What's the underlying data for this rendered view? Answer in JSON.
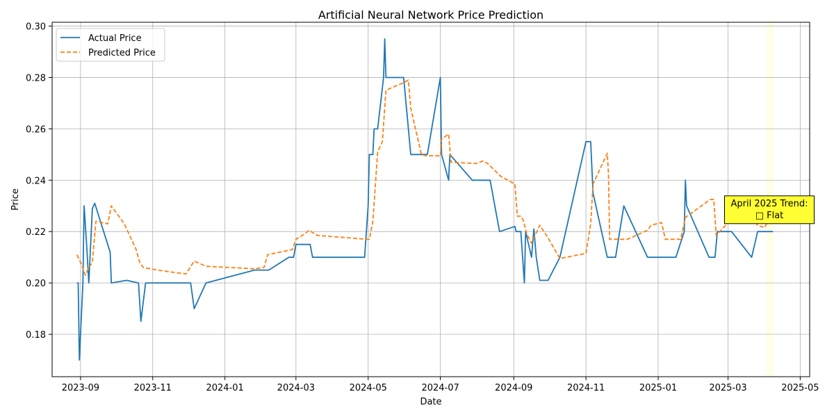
{
  "chart_data": {
    "type": "line",
    "title": "Artificial Neural Network Price Prediction",
    "xlabel": "Date",
    "ylabel": "Price",
    "xlim": [
      "2023-08-08",
      "2025-05-09"
    ],
    "ylim": [
      0.1635,
      0.3015
    ],
    "grid": true,
    "legend_position": "top-left",
    "x_ticks": [
      "2023-09-01",
      "2023-11-01",
      "2024-01-01",
      "2024-03-01",
      "2024-05-01",
      "2024-07-01",
      "2024-09-01",
      "2024-11-01",
      "2025-01-01",
      "2025-03-01",
      "2025-05-01"
    ],
    "x_tick_labels": [
      "2023-09",
      "2023-11",
      "2024-01",
      "2024-03",
      "2024-05",
      "2024-07",
      "2024-09",
      "2024-11",
      "2025-01",
      "2025-03",
      "2025-05"
    ],
    "y_ticks": [
      0.18,
      0.2,
      0.22,
      0.24,
      0.26,
      0.28,
      0.3
    ],
    "y_tick_labels": [
      "0.18",
      "0.20",
      "0.22",
      "0.24",
      "0.26",
      "0.28",
      "0.30"
    ],
    "series": [
      {
        "name": "Actual Price",
        "color": "#1f77b4",
        "style": "solid",
        "points": [
          [
            "2023-08-29",
            0.2
          ],
          [
            "2023-08-30",
            0.2
          ],
          [
            "2023-08-31",
            0.17
          ],
          [
            "2023-09-03",
            0.2
          ],
          [
            "2023-09-04",
            0.23
          ],
          [
            "2023-09-06",
            0.216
          ],
          [
            "2023-09-08",
            0.2
          ],
          [
            "2023-09-11",
            0.229
          ],
          [
            "2023-09-13",
            0.231
          ],
          [
            "2023-09-26",
            0.212
          ],
          [
            "2023-09-27",
            0.2
          ],
          [
            "2023-10-10",
            0.201
          ],
          [
            "2023-10-20",
            0.2
          ],
          [
            "2023-10-22",
            0.185
          ],
          [
            "2023-10-26",
            0.2
          ],
          [
            "2023-12-03",
            0.2
          ],
          [
            "2023-12-06",
            0.19
          ],
          [
            "2023-12-16",
            0.2
          ],
          [
            "2024-01-26",
            0.205
          ],
          [
            "2024-02-07",
            0.205
          ],
          [
            "2024-02-24",
            0.21
          ],
          [
            "2024-02-28",
            0.21
          ],
          [
            "2024-03-01",
            0.215
          ],
          [
            "2024-03-13",
            0.215
          ],
          [
            "2024-03-15",
            0.21
          ],
          [
            "2024-04-28",
            0.21
          ],
          [
            "2024-05-01",
            0.23
          ],
          [
            "2024-05-02",
            0.25
          ],
          [
            "2024-05-05",
            0.25
          ],
          [
            "2024-05-06",
            0.26
          ],
          [
            "2024-05-09",
            0.26
          ],
          [
            "2024-05-14",
            0.28
          ],
          [
            "2024-05-15",
            0.295
          ],
          [
            "2024-05-16",
            0.28
          ],
          [
            "2024-05-31",
            0.28
          ],
          [
            "2024-06-06",
            0.25
          ],
          [
            "2024-06-20",
            0.25
          ],
          [
            "2024-07-01",
            0.28
          ],
          [
            "2024-07-02",
            0.25
          ],
          [
            "2024-07-08",
            0.24
          ],
          [
            "2024-07-09",
            0.25
          ],
          [
            "2024-07-28",
            0.24
          ],
          [
            "2024-08-12",
            0.24
          ],
          [
            "2024-08-20",
            0.22
          ],
          [
            "2024-09-02",
            0.222
          ],
          [
            "2024-09-03",
            0.22
          ],
          [
            "2024-09-07",
            0.22
          ],
          [
            "2024-09-10",
            0.2
          ],
          [
            "2024-09-11",
            0.22
          ],
          [
            "2024-09-16",
            0.21
          ],
          [
            "2024-09-18",
            0.221
          ],
          [
            "2024-09-20",
            0.21
          ],
          [
            "2024-09-23",
            0.201
          ],
          [
            "2024-09-30",
            0.201
          ],
          [
            "2024-10-10",
            0.21
          ],
          [
            "2024-11-01",
            0.255
          ],
          [
            "2024-11-05",
            0.255
          ],
          [
            "2024-11-07",
            0.235
          ],
          [
            "2024-11-19",
            0.21
          ],
          [
            "2024-11-26",
            0.21
          ],
          [
            "2024-12-03",
            0.23
          ],
          [
            "2024-12-23",
            0.21
          ],
          [
            "2025-01-16",
            0.21
          ],
          [
            "2025-01-23",
            0.22
          ],
          [
            "2025-01-24",
            0.24
          ],
          [
            "2025-01-25",
            0.23
          ],
          [
            "2025-02-13",
            0.21
          ],
          [
            "2025-02-18",
            0.21
          ],
          [
            "2025-02-20",
            0.22
          ],
          [
            "2025-03-04",
            0.22
          ],
          [
            "2025-03-21",
            0.21
          ],
          [
            "2025-03-26",
            0.22
          ],
          [
            "2025-04-08",
            0.22
          ]
        ]
      },
      {
        "name": "Predicted Price",
        "color": "#ff7f0e",
        "style": "dashed",
        "points": [
          [
            "2023-08-29",
            0.211
          ],
          [
            "2023-09-02",
            0.207
          ],
          [
            "2023-09-05",
            0.203
          ],
          [
            "2023-09-08",
            0.206
          ],
          [
            "2023-09-11",
            0.208
          ],
          [
            "2023-09-14",
            0.224
          ],
          [
            "2023-09-24",
            0.223
          ],
          [
            "2023-09-27",
            0.23
          ],
          [
            "2023-10-08",
            0.223
          ],
          [
            "2023-10-18",
            0.213
          ],
          [
            "2023-10-21",
            0.208
          ],
          [
            "2023-10-24",
            0.206
          ],
          [
            "2023-11-05",
            0.205
          ],
          [
            "2023-11-29",
            0.2035
          ],
          [
            "2023-12-06",
            0.2085
          ],
          [
            "2023-12-16",
            0.2065
          ],
          [
            "2024-01-26",
            0.2055
          ],
          [
            "2024-02-03",
            0.206
          ],
          [
            "2024-02-06",
            0.211
          ],
          [
            "2024-02-27",
            0.213
          ],
          [
            "2024-03-01",
            0.217
          ],
          [
            "2024-03-08",
            0.219
          ],
          [
            "2024-03-12",
            0.2205
          ],
          [
            "2024-03-19",
            0.2185
          ],
          [
            "2024-04-30",
            0.217
          ],
          [
            "2024-05-02",
            0.217
          ],
          [
            "2024-05-05",
            0.224
          ],
          [
            "2024-05-09",
            0.251
          ],
          [
            "2024-05-13",
            0.255
          ],
          [
            "2024-05-16",
            0.275
          ],
          [
            "2024-05-31",
            0.278
          ],
          [
            "2024-06-04",
            0.279
          ],
          [
            "2024-06-06",
            0.268
          ],
          [
            "2024-06-15",
            0.25
          ],
          [
            "2024-06-19",
            0.2495
          ],
          [
            "2024-07-01",
            0.2495
          ],
          [
            "2024-07-02",
            0.256
          ],
          [
            "2024-07-08",
            0.258
          ],
          [
            "2024-07-10",
            0.247
          ],
          [
            "2024-07-31",
            0.2465
          ],
          [
            "2024-08-06",
            0.2475
          ],
          [
            "2024-08-10",
            0.2465
          ],
          [
            "2024-08-21",
            0.2415
          ],
          [
            "2024-09-02",
            0.2385
          ],
          [
            "2024-09-04",
            0.226
          ],
          [
            "2024-09-07",
            0.226
          ],
          [
            "2024-09-09",
            0.2245
          ],
          [
            "2024-09-12",
            0.219
          ],
          [
            "2024-09-16",
            0.2155
          ],
          [
            "2024-09-23",
            0.2225
          ],
          [
            "2024-09-30",
            0.2175
          ],
          [
            "2024-10-10",
            0.2095
          ],
          [
            "2024-11-01",
            0.2115
          ],
          [
            "2024-11-05",
            0.223
          ],
          [
            "2024-11-07",
            0.2385
          ],
          [
            "2024-11-19",
            0.2505
          ],
          [
            "2024-11-20",
            0.2425
          ],
          [
            "2024-11-21",
            0.217
          ],
          [
            "2024-12-06",
            0.217
          ],
          [
            "2024-12-23",
            0.2205
          ],
          [
            "2024-12-26",
            0.2225
          ],
          [
            "2025-01-04",
            0.2235
          ],
          [
            "2025-01-07",
            0.217
          ],
          [
            "2025-01-20",
            0.217
          ],
          [
            "2025-01-24",
            0.2255
          ],
          [
            "2025-02-14",
            0.2325
          ],
          [
            "2025-02-17",
            0.2325
          ],
          [
            "2025-02-19",
            0.2185
          ],
          [
            "2025-02-27",
            0.2225
          ],
          [
            "2025-03-04",
            0.225
          ],
          [
            "2025-03-21",
            0.225
          ],
          [
            "2025-03-26",
            0.2225
          ],
          [
            "2025-04-01",
            0.2215
          ],
          [
            "2025-04-04",
            0.2245
          ]
        ]
      }
    ],
    "highlight_span": {
      "start": "2025-04-03",
      "end": "2025-04-08",
      "color": "#ffffe0"
    },
    "annotation": {
      "line1": "April 2025 Trend:",
      "line2": "□ Flat",
      "anchor_date": "2025-03-01",
      "anchor_value": 0.2285,
      "background": "#ffff33"
    }
  }
}
